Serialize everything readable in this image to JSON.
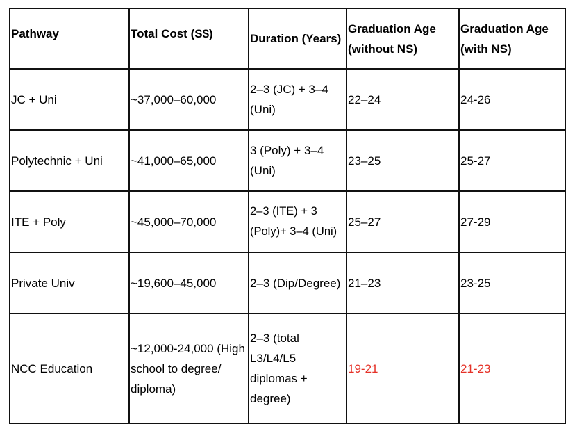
{
  "table": {
    "headers": [
      "Pathway",
      "Total Cost (S$)",
      "Duration (Years)",
      "Graduation Age (without NS)",
      "Graduation Age (with NS)"
    ],
    "rows": [
      {
        "pathway": "JC + Uni",
        "total_cost": "~37,000–60,000",
        "duration": "2–3 (JC) + 3–4 (Uni)",
        "grad_age_without_ns": "22–24",
        "grad_age_with_ns": "24-26"
      },
      {
        "pathway": "Polytechnic + Uni",
        "total_cost": "~41,000–65,000",
        "duration": "3 (Poly) + 3–4 (Uni)",
        "grad_age_without_ns": "23–25",
        "grad_age_with_ns": "25-27"
      },
      {
        "pathway": "ITE + Poly",
        "total_cost": "~45,000–70,000",
        "duration": "2–3 (ITE) + 3 (Poly)+ 3–4 (Uni)",
        "grad_age_without_ns": "25–27",
        "grad_age_with_ns": "27-29"
      },
      {
        "pathway": "Private Univ",
        "total_cost": "~19,600–45,000",
        "duration": "2–3 (Dip/Degree)",
        "grad_age_without_ns": "21–23",
        "grad_age_with_ns": "23-25"
      },
      {
        "pathway": "NCC Education",
        "total_cost": "~12,000-24,000 (High school to degree/ diploma)",
        "duration": "2–3 (total L3/L4/L5 diplomas + degree)",
        "grad_age_without_ns": "19-21",
        "grad_age_with_ns": "21-23"
      }
    ]
  },
  "colors": {
    "border": "#111111",
    "highlight_text": "#e53228",
    "background": "#ffffff"
  }
}
